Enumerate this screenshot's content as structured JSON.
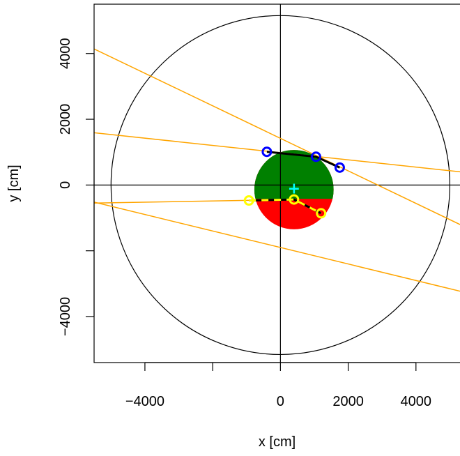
{
  "chart_data": {
    "type": "scatter",
    "xlabel": "x [cm]",
    "ylabel": "y [cm]",
    "xlim": [
      -5500,
      5300
    ],
    "ylim": [
      -5400,
      5500
    ],
    "x_ticks": [
      -4000,
      -2000,
      0,
      2000,
      4000
    ],
    "x_tick_labels": [
      "−4000",
      "",
      "0",
      "2000",
      "4000"
    ],
    "y_ticks": [
      -4000,
      -2000,
      0,
      2000,
      4000
    ],
    "y_tick_labels": [
      "−4000",
      "",
      "0",
      "2000",
      "4000"
    ],
    "outer_circle": {
      "cx": 0,
      "cy": 0,
      "r": 5000
    },
    "disk": {
      "cx": 400,
      "cy": -140,
      "r": 1170,
      "upper_color": "#008000",
      "lower_color": "#ff0000",
      "split_y": -420
    },
    "center_marker": {
      "x": 400,
      "y": -120,
      "symbol": "+",
      "color": "#00ffff"
    },
    "guide_lines": [
      {
        "from": [
          -5500,
          4140
        ],
        "to": [
          5500,
          -1300
        ]
      },
      {
        "from": [
          -5500,
          1590
        ],
        "to": [
          5500,
          380
        ]
      },
      {
        "from": [
          -5500,
          -520
        ],
        "to": [
          5500,
          -3280
        ]
      },
      {
        "from": [
          -5500,
          -550
        ],
        "to": [
          400,
          -440
        ]
      }
    ],
    "series": [
      {
        "points": [
          {
            "x": -400,
            "y": 1010
          },
          {
            "x": 1050,
            "y": 860
          },
          {
            "x": 1750,
            "y": 530
          }
        ],
        "marker_color": "#0000ff",
        "line_color": "#000000"
      },
      {
        "points": [
          {
            "x": -930,
            "y": -470
          },
          {
            "x": 400,
            "y": -440
          },
          {
            "x": 1200,
            "y": -860
          }
        ],
        "marker_color": "#ffff00",
        "line_color": "#000000"
      }
    ],
    "colors": {
      "guide": "#ffa500",
      "axis": "#000000"
    }
  }
}
